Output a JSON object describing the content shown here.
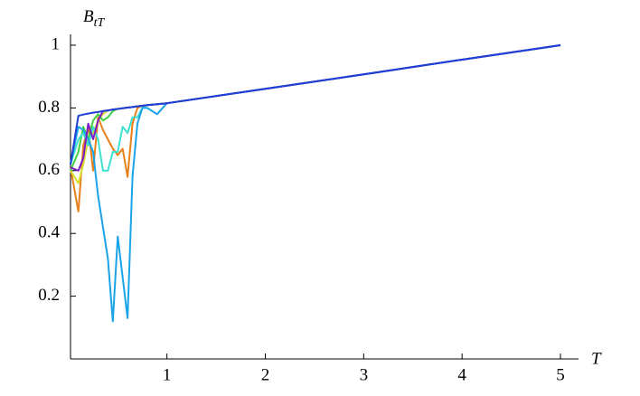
{
  "chart_data": {
    "type": "line",
    "y_label": {
      "main": "B",
      "sub": "tT"
    },
    "x_label": "T",
    "x": [
      0.02,
      0.1,
      0.15,
      0.2,
      0.25,
      0.3,
      0.35,
      0.4,
      0.45,
      0.5,
      0.55,
      0.6,
      0.65,
      0.7,
      0.75,
      0.8,
      0.9,
      1,
      2,
      3,
      4,
      5
    ],
    "series": [
      {
        "color": "#e8801a",
        "values": [
          0.61,
          0.47,
          0.68,
          0.74,
          0.6,
          0.77,
          0.73,
          0.7,
          0.67,
          0.65,
          0.67,
          0.58,
          0.75,
          0.8,
          0.807,
          0.809,
          0.812,
          0.815,
          0.861,
          0.907,
          0.954,
          1.0
        ]
      },
      {
        "color": "#d8e030",
        "values": [
          0.6,
          0.56,
          0.62,
          0.7,
          0.72,
          0.76,
          0.78,
          0.792,
          0.795,
          0.797,
          0.799,
          0.801,
          0.803,
          0.805,
          0.807,
          0.809,
          0.812,
          0.815,
          0.861,
          0.907,
          0.954,
          1.0
        ]
      },
      {
        "color": "#40d040",
        "values": [
          0.6,
          0.66,
          0.74,
          0.7,
          0.76,
          0.78,
          0.76,
          0.77,
          0.79,
          0.797,
          0.799,
          0.801,
          0.803,
          0.805,
          0.807,
          0.809,
          0.812,
          0.815,
          0.861,
          0.907,
          0.954,
          1.0
        ]
      },
      {
        "color": "#3ee0d0",
        "values": [
          0.62,
          0.7,
          0.72,
          0.68,
          0.74,
          0.7,
          0.6,
          0.6,
          0.66,
          0.66,
          0.74,
          0.72,
          0.77,
          0.77,
          0.8,
          0.809,
          0.812,
          0.815,
          0.861,
          0.907,
          0.954,
          1.0
        ]
      },
      {
        "color": "#1aa3e8",
        "values": [
          0.62,
          0.74,
          0.73,
          0.7,
          0.66,
          0.52,
          0.42,
          0.32,
          0.12,
          0.39,
          0.26,
          0.13,
          0.58,
          0.75,
          0.8,
          0.8,
          0.78,
          0.815,
          0.861,
          0.907,
          0.954,
          1.0
        ]
      },
      {
        "color": "#7a1fc8",
        "values": [
          0.61,
          0.6,
          0.64,
          0.75,
          0.7,
          0.76,
          0.79,
          0.792,
          0.795,
          0.797,
          0.799,
          0.801,
          0.803,
          0.805,
          0.807,
          0.809,
          0.812,
          0.815,
          0.861,
          0.907,
          0.954,
          1.0
        ]
      },
      {
        "color": "#1f3fd6",
        "values": [
          0.62,
          0.775,
          0.779,
          0.782,
          0.785,
          0.787,
          0.79,
          0.792,
          0.795,
          0.797,
          0.799,
          0.801,
          0.803,
          0.805,
          0.807,
          0.809,
          0.812,
          0.815,
          0.861,
          0.907,
          0.954,
          1.0
        ]
      }
    ],
    "xlim": [
      0.02,
      5
    ],
    "ylim": [
      0,
      1
    ],
    "xticks": [
      1,
      2,
      3,
      4,
      5
    ],
    "yticks": [
      0.2,
      0.4,
      0.6,
      0.8,
      1
    ]
  }
}
